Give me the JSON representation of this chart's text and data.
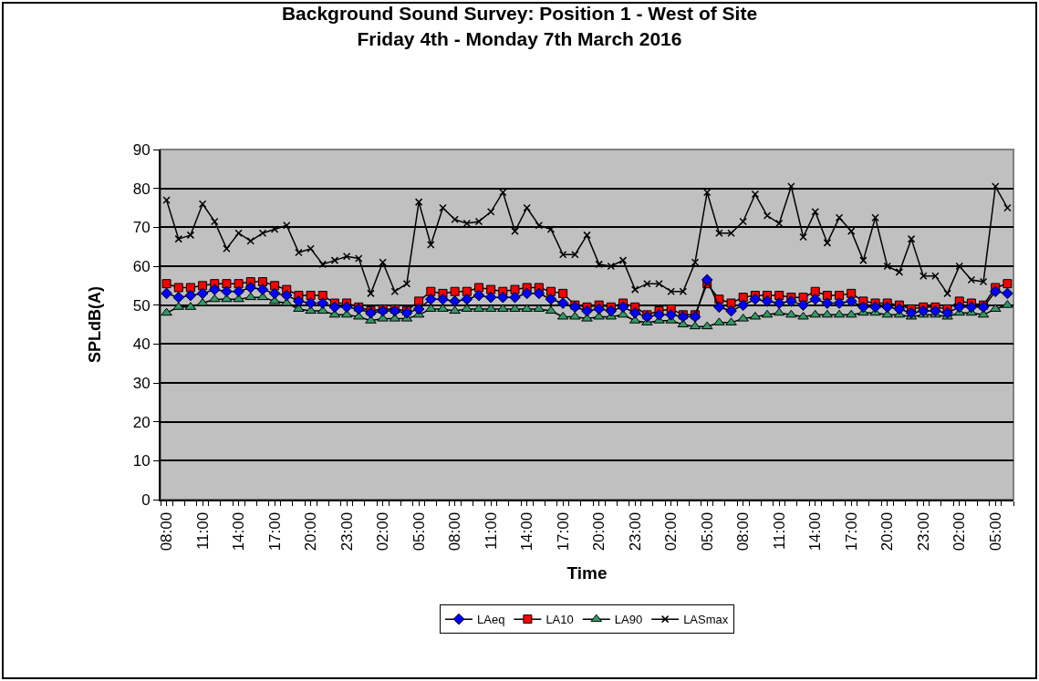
{
  "chart_data": {
    "type": "line",
    "title": "Background Sound Survey: Position 1 - West of Site\nFriday 4th - Monday 7th March 2016",
    "xlabel": "Time",
    "ylabel": "SPLdB(A)",
    "categories": [
      "08:00",
      null,
      null,
      "11:00",
      null,
      null,
      "14:00",
      null,
      null,
      "17:00",
      null,
      null,
      "20:00",
      null,
      null,
      "23:00",
      null,
      null,
      "02:00",
      null,
      null,
      "05:00",
      null,
      null,
      "08:00",
      null,
      null,
      "11:00",
      null,
      null,
      "14:00",
      null,
      null,
      "17:00",
      null,
      null,
      "20:00",
      null,
      null,
      "23:00",
      null,
      null,
      "02:00",
      null,
      null,
      "05:00",
      null,
      null,
      "08:00",
      null,
      null,
      "11:00",
      null,
      null,
      "14:00",
      null,
      null,
      "17:00",
      null,
      null,
      "20:00",
      null,
      null,
      "23:00",
      null,
      null,
      "02:00",
      null,
      null,
      "05:00",
      null
    ],
    "series": [
      {
        "name": "LAeq",
        "color": "#0000ff",
        "marker": "diamond",
        "values": [
          53,
          52,
          52.5,
          53,
          54,
          53.5,
          53.5,
          54.5,
          54,
          53,
          52.5,
          51,
          50.5,
          50.5,
          49.5,
          49.5,
          49,
          48,
          48.5,
          48.5,
          48,
          49,
          51.5,
          51.5,
          51,
          51.5,
          52.5,
          52,
          52,
          52,
          53,
          53,
          51.5,
          50.5,
          49.5,
          48.5,
          49,
          48.5,
          49.5,
          48,
          47,
          47.5,
          47.5,
          47,
          47,
          56.5,
          49.5,
          48.5,
          50,
          51.5,
          51,
          50.5,
          51,
          50,
          51.5,
          50.5,
          50.5,
          51,
          49.5,
          49.5,
          49.5,
          49,
          48,
          48.5,
          48.5,
          48,
          49.5,
          49.5,
          49.5,
          53.5,
          53
        ]
      },
      {
        "name": "LA10",
        "color": "#ff0000",
        "marker": "square",
        "values": [
          55.5,
          54.5,
          54.5,
          55,
          55.5,
          55.5,
          55.5,
          56,
          56,
          55,
          54,
          52.5,
          52.5,
          52.5,
          50.5,
          50.5,
          49.5,
          48.5,
          49,
          49,
          48.5,
          51,
          53.5,
          53,
          53.5,
          53.5,
          54.5,
          54,
          53.5,
          54,
          54.5,
          54.5,
          53.5,
          53,
          50,
          49.5,
          50,
          49.5,
          50.5,
          49.5,
          47.5,
          48.5,
          49,
          47.5,
          47.5,
          55.5,
          51.5,
          50.5,
          52,
          52.5,
          52.5,
          52.5,
          52,
          52,
          53.5,
          52.5,
          52.5,
          53,
          51,
          50.5,
          50.5,
          50,
          49,
          49.5,
          49.5,
          49,
          51,
          50.5,
          50,
          54.5,
          55.5
        ]
      },
      {
        "name": "LA90",
        "color": "#339966",
        "marker": "triangle",
        "values": [
          48,
          49.5,
          49.5,
          50.5,
          51.5,
          51.5,
          51.5,
          52,
          52,
          51,
          50.5,
          49,
          48.5,
          48.5,
          47.5,
          47.5,
          47,
          46,
          46.5,
          46.5,
          46.5,
          47.5,
          49,
          49,
          48.5,
          49,
          49,
          49,
          49,
          49,
          49,
          49,
          48.5,
          47,
          47,
          46.5,
          47,
          47,
          47.5,
          46,
          45.5,
          46,
          46,
          45,
          44.5,
          44.5,
          45.5,
          45.5,
          46.5,
          47,
          47.5,
          48,
          47.5,
          47,
          47.5,
          47.5,
          47.5,
          47.5,
          48,
          48,
          47.5,
          47.5,
          47,
          47.5,
          47.5,
          47,
          48,
          48,
          47.5,
          49,
          50
        ]
      },
      {
        "name": "LASmax",
        "color": "#000000",
        "marker": "cross",
        "values": [
          77,
          67,
          68,
          76,
          71.5,
          64.5,
          68.5,
          66.5,
          68.5,
          69.5,
          70.5,
          63.5,
          64.5,
          60.5,
          61.5,
          62.5,
          62,
          53,
          61,
          53.5,
          55.5,
          76.5,
          65.5,
          75,
          72,
          71,
          71.5,
          74,
          79,
          69,
          75,
          70.5,
          69.5,
          63,
          63,
          68,
          60.5,
          60,
          61.5,
          54,
          55.5,
          55.5,
          53.5,
          53.5,
          61,
          79,
          68.5,
          68.5,
          71.5,
          78.5,
          73,
          71,
          80.5,
          67.5,
          74,
          66,
          72.5,
          69,
          61.5,
          72.5,
          60,
          58.5,
          67,
          57.5,
          57.5,
          53,
          60,
          56.5,
          56,
          80.5,
          75
        ]
      }
    ],
    "ylim": [
      0,
      90
    ],
    "yticks": [
      0,
      10,
      20,
      30,
      40,
      50,
      60,
      70,
      80,
      90
    ],
    "grid": "y",
    "legend": "bottom",
    "line_style": "solid"
  }
}
